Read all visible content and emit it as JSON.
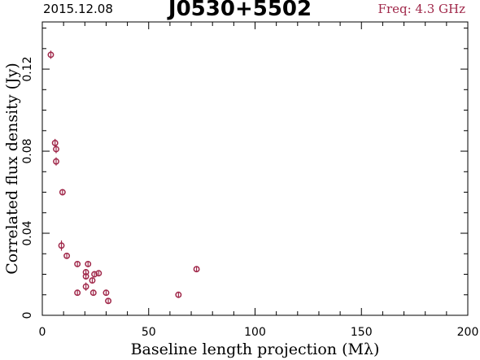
{
  "header": {
    "date": "2015.12.08",
    "source": "J0530+5502",
    "freq": "Freq: 4.3 GHz"
  },
  "colors": {
    "points": "#a0284a",
    "axes": "#000000"
  },
  "chart_data": {
    "type": "scatter",
    "xlabel": "Baseline length projection (Mλ)",
    "ylabel": "Correlated flux density (Jy)",
    "xlim": [
      0,
      200
    ],
    "ylim": [
      0,
      0.143
    ],
    "xticks": [
      0,
      50,
      100,
      150,
      200
    ],
    "yticks": [
      0,
      0.04,
      0.08,
      0.12
    ],
    "xtick_labels": [
      "0",
      "50",
      "100",
      "150",
      "200"
    ],
    "ytick_labels": [
      "0",
      "0.04",
      "0.08",
      "0.12"
    ],
    "grid": false,
    "series": [
      {
        "points": [
          {
            "x": 4.0,
            "y": 0.127,
            "err": 0.002
          },
          {
            "x": 6.0,
            "y": 0.084,
            "err": 0.002
          },
          {
            "x": 6.5,
            "y": 0.081,
            "err": 0.002
          },
          {
            "x": 6.5,
            "y": 0.075,
            "err": 0.002
          },
          {
            "x": 9.5,
            "y": 0.06,
            "err": 0.0015
          },
          {
            "x": 9.0,
            "y": 0.034,
            "err": 0.0025
          },
          {
            "x": 11.5,
            "y": 0.029,
            "err": 0.0012
          },
          {
            "x": 16.5,
            "y": 0.025,
            "err": 0.0012
          },
          {
            "x": 16.5,
            "y": 0.011,
            "err": 0.0015
          },
          {
            "x": 20.5,
            "y": 0.021,
            "err": 0.0015
          },
          {
            "x": 20.5,
            "y": 0.019,
            "err": 0.0015
          },
          {
            "x": 20.5,
            "y": 0.014,
            "err": 0.002
          },
          {
            "x": 21.5,
            "y": 0.025,
            "err": 0.0012
          },
          {
            "x": 23.5,
            "y": 0.017,
            "err": 0.0012
          },
          {
            "x": 24.5,
            "y": 0.02,
            "err": 0.0012
          },
          {
            "x": 24.0,
            "y": 0.011,
            "err": 0.0012
          },
          {
            "x": 26.5,
            "y": 0.0205,
            "err": 0.001
          },
          {
            "x": 30.0,
            "y": 0.011,
            "err": 0.0012
          },
          {
            "x": 31.0,
            "y": 0.007,
            "err": 0.0012
          },
          {
            "x": 64.0,
            "y": 0.01,
            "err": 0.0012
          },
          {
            "x": 72.5,
            "y": 0.0225,
            "err": 0.0012
          }
        ]
      }
    ]
  }
}
